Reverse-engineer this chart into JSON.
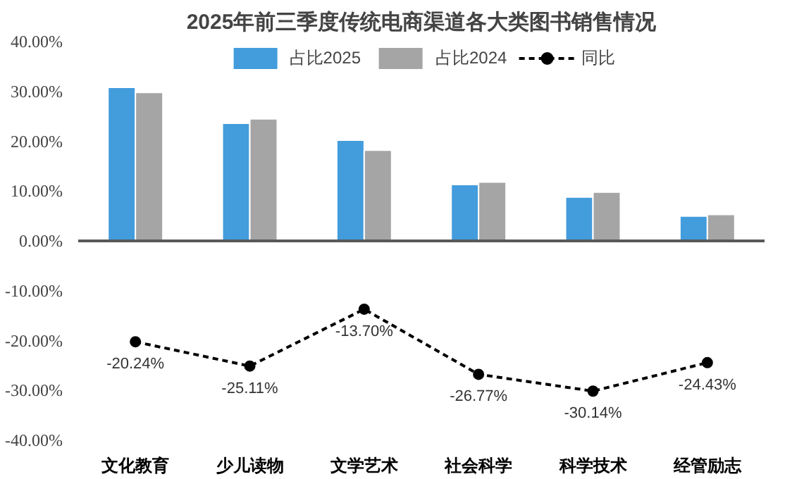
{
  "chart_data": {
    "type": "bar",
    "title": "2025年前三季度传统电商渠道各大类图书销售情况",
    "categories": [
      "文化教育",
      "少儿读物",
      "文学艺术",
      "社会科学",
      "科学技术",
      "经管励志"
    ],
    "series": [
      {
        "name": "占比2025",
        "color": "#439cdc",
        "values": [
          30.8,
          23.6,
          20.2,
          11.3,
          8.8,
          5.0
        ]
      },
      {
        "name": "占比2024",
        "color": "#a5a5a5",
        "values": [
          29.8,
          24.5,
          18.2,
          11.8,
          9.8,
          5.3
        ]
      },
      {
        "name": "同比",
        "type": "line",
        "color": "#000000",
        "marker": "circle",
        "line_style": "dashed",
        "values": [
          -20.24,
          -25.11,
          -13.7,
          -26.77,
          -30.14,
          -24.43
        ],
        "value_labels": [
          "-20.24%",
          "-25.11%",
          "-13.70%",
          "-26.77%",
          "-30.14%",
          "-24.43%"
        ]
      }
    ],
    "ylim": [
      -40,
      40
    ],
    "yticks": [
      {
        "value": 40,
        "label": "40.00%"
      },
      {
        "value": 30,
        "label": "30.00%"
      },
      {
        "value": 20,
        "label": "20.00%"
      },
      {
        "value": 10,
        "label": "10.00%"
      },
      {
        "value": 0,
        "label": "0.00%"
      },
      {
        "value": -10,
        "label": "-10.00%"
      },
      {
        "value": -20,
        "label": "-20.00%"
      },
      {
        "value": -30,
        "label": "-30.00%"
      },
      {
        "value": -40,
        "label": "-40.00%"
      }
    ],
    "ref_lines": [
      {
        "axis": "y",
        "value": 0,
        "color": "#595959"
      }
    ],
    "grid": false,
    "legend": "top"
  }
}
